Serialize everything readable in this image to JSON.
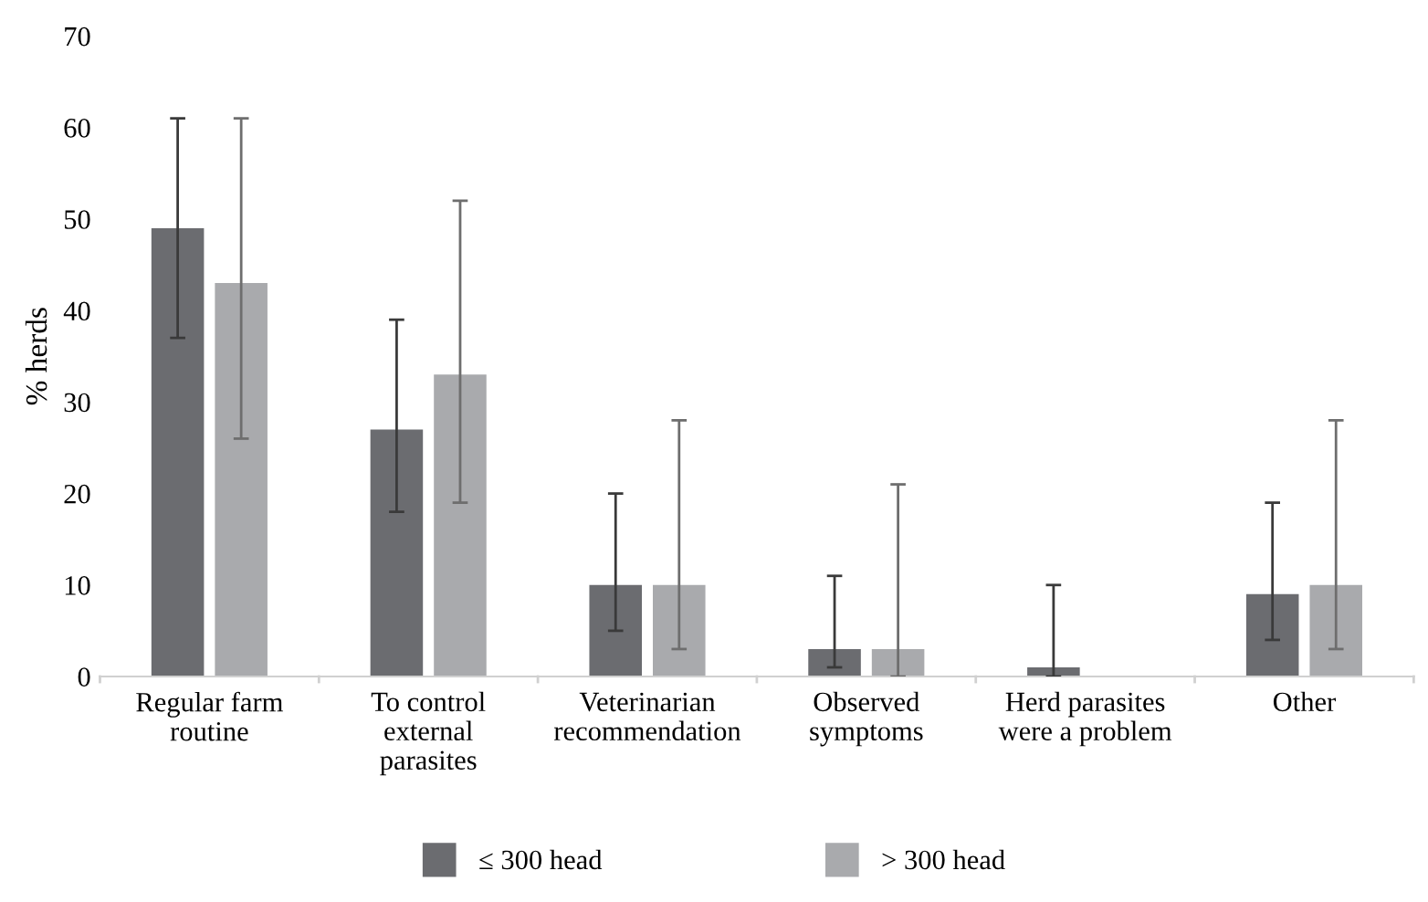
{
  "chart_data": {
    "type": "bar",
    "ylabel": "% herds",
    "categories": [
      "Regular farm\nroutine",
      "To control\nexternal\nparasites",
      "Veterinarian\nrecommendation",
      "Observed\nsymptoms",
      "Herd parasites\nwere a problem",
      "Other"
    ],
    "series": [
      {
        "name": "≤ 300 head",
        "color": "#6b6c70",
        "values": [
          49,
          27,
          10,
          3,
          1,
          9
        ],
        "errors": [
          [
            37,
            61
          ],
          [
            18,
            39
          ],
          [
            5,
            20
          ],
          [
            1,
            11
          ],
          [
            0,
            10
          ],
          [
            4,
            19
          ]
        ]
      },
      {
        "name": "> 300 head",
        "color": "#a9aaad",
        "values": [
          43,
          33,
          10,
          3,
          null,
          10
        ],
        "errors": [
          [
            26,
            61
          ],
          [
            19,
            52
          ],
          [
            3,
            28
          ],
          [
            0,
            21
          ],
          null,
          [
            3,
            28
          ]
        ]
      }
    ],
    "ylim": [
      0,
      70
    ],
    "yticks": [
      0,
      10,
      20,
      30,
      40,
      50,
      60,
      70
    ],
    "grid": false,
    "legend": "bottom"
  }
}
